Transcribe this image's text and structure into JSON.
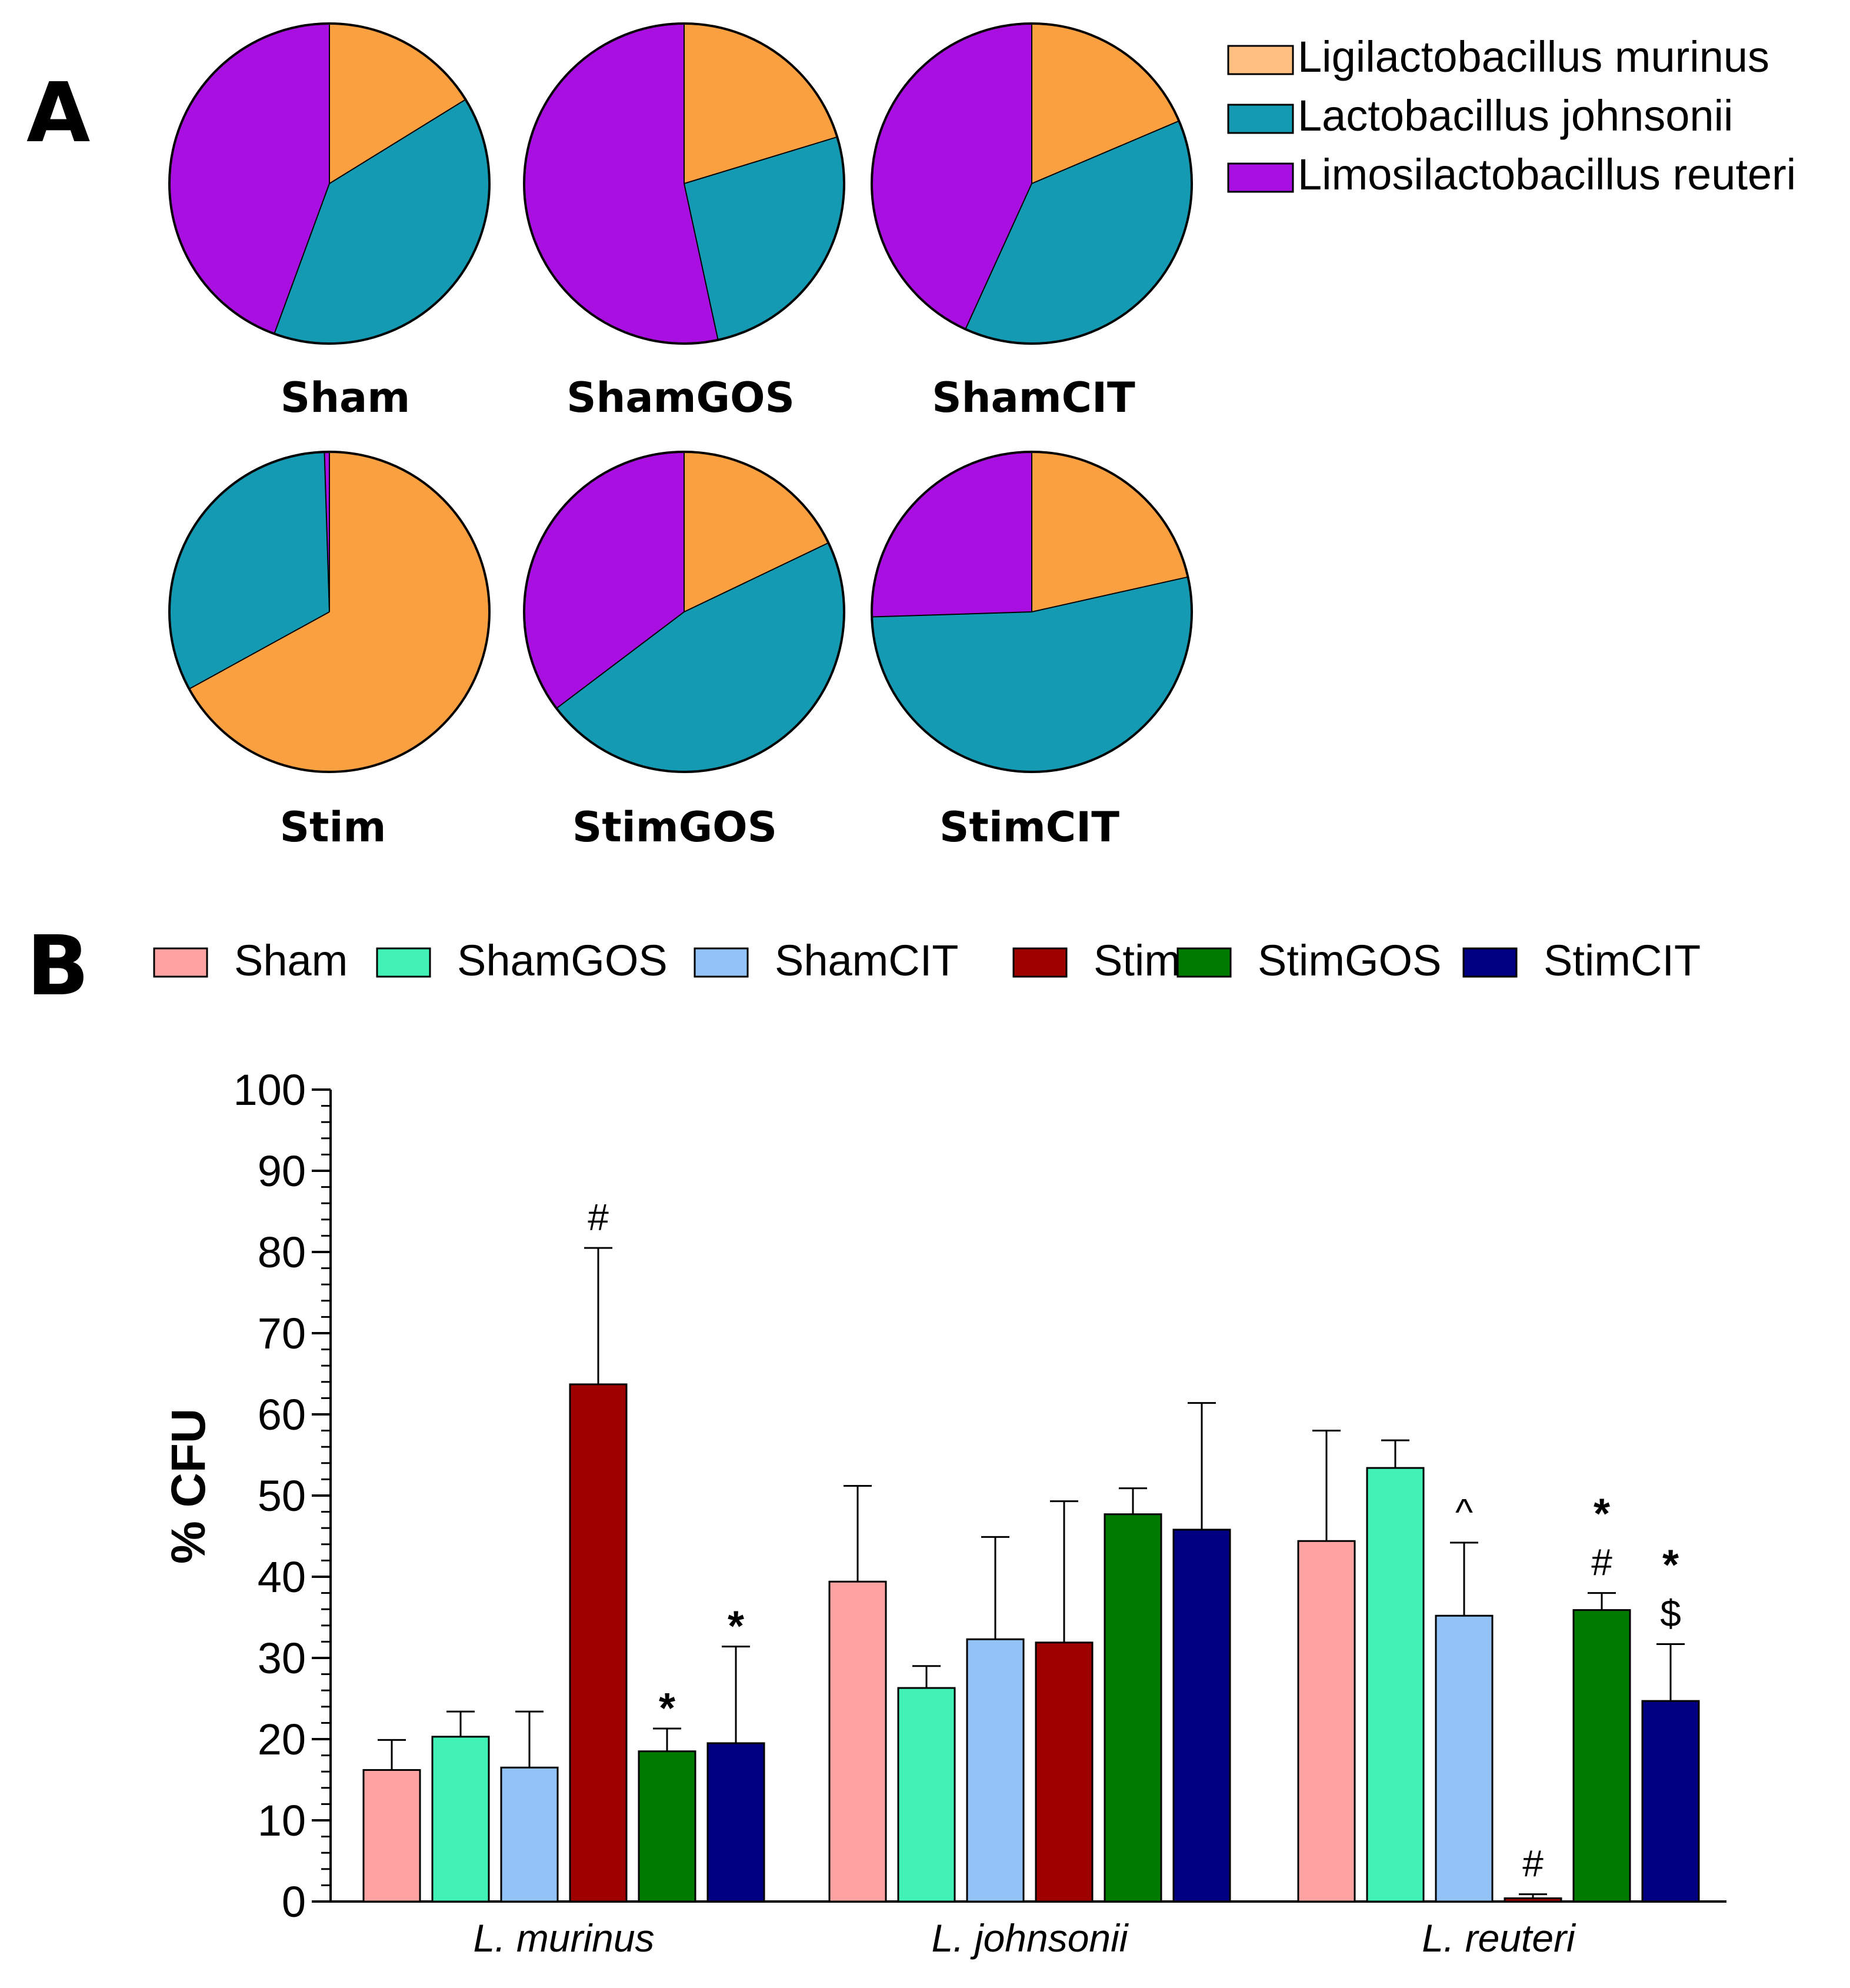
{
  "chart_data": [
    {
      "panel": "A",
      "type": "pie",
      "legend": {
        "placement": "top-right",
        "entries": [
          "Ligilactobacillus murinus",
          "Lactobacillus johnsonii",
          "Limosilactobacillus reuteri"
        ]
      },
      "slice_colors": [
        "#FBA040",
        "#149BB3",
        "#A80FE0"
      ],
      "legend_colors": [
        "#FFC081",
        "#149BB3",
        "#A80FE0"
      ],
      "pies": [
        {
          "label": "Sham",
          "values": [
            16.2,
            39.4,
            44.4
          ]
        },
        {
          "label": "ShamGOS",
          "values": [
            20.3,
            26.3,
            53.4
          ]
        },
        {
          "label": "ShamCIT",
          "values": [
            18.6,
            38.2,
            43.2
          ]
        },
        {
          "label": "Stim",
          "values": [
            67.0,
            32.5,
            0.5
          ]
        },
        {
          "label": "StimGOS",
          "values": [
            17.9,
            46.8,
            35.3
          ]
        },
        {
          "label": "StimCIT",
          "values": [
            21.5,
            53.0,
            25.5
          ]
        }
      ]
    },
    {
      "panel": "B",
      "type": "bar",
      "legend": {
        "placement": "top"
      },
      "categories": [
        "L. murinus",
        "L. johnsonii",
        "L. reuteri"
      ],
      "ylabel": "% CFU",
      "xlabel": "",
      "ylim": [
        0,
        100
      ],
      "yticks": [
        "0",
        "10",
        "20",
        "30",
        "40",
        "50",
        "60",
        "70",
        "80",
        "90",
        "100"
      ],
      "series": [
        {
          "name": "Sham",
          "color": "#FFA3A2",
          "values": [
            16.2,
            39.4,
            44.4
          ],
          "errors": [
            3.7,
            11.8,
            13.6
          ],
          "annotations": [
            "",
            "",
            ""
          ]
        },
        {
          "name": "ShamGOS",
          "color": "#41F1B6",
          "values": [
            20.3,
            26.3,
            53.4
          ],
          "errors": [
            3.1,
            2.7,
            3.4
          ],
          "annotations": [
            "",
            "",
            ""
          ]
        },
        {
          "name": "ShamCIT",
          "color": "#93C2F7",
          "values": [
            16.5,
            32.3,
            35.2
          ],
          "errors": [
            6.9,
            12.6,
            9.0
          ],
          "annotations": [
            "",
            "",
            "^"
          ]
        },
        {
          "name": "Stim",
          "color": "#9E0000",
          "values": [
            63.7,
            31.9,
            0.4
          ],
          "errors": [
            16.8,
            17.4,
            0.5
          ],
          "annotations": [
            "#",
            "",
            "#"
          ]
        },
        {
          "name": "StimGOS",
          "color": "#007B00",
          "values": [
            18.5,
            47.7,
            35.9
          ],
          "errors": [
            2.8,
            3.2,
            2.1
          ],
          "annotations": [
            "*",
            "",
            "*\n#"
          ]
        },
        {
          "name": "StimCIT",
          "color": "#000080",
          "values": [
            19.5,
            45.8,
            24.7
          ],
          "errors": [
            11.9,
            15.6,
            7.0
          ],
          "annotations": [
            "*",
            "",
            "*\n$"
          ]
        }
      ]
    }
  ]
}
